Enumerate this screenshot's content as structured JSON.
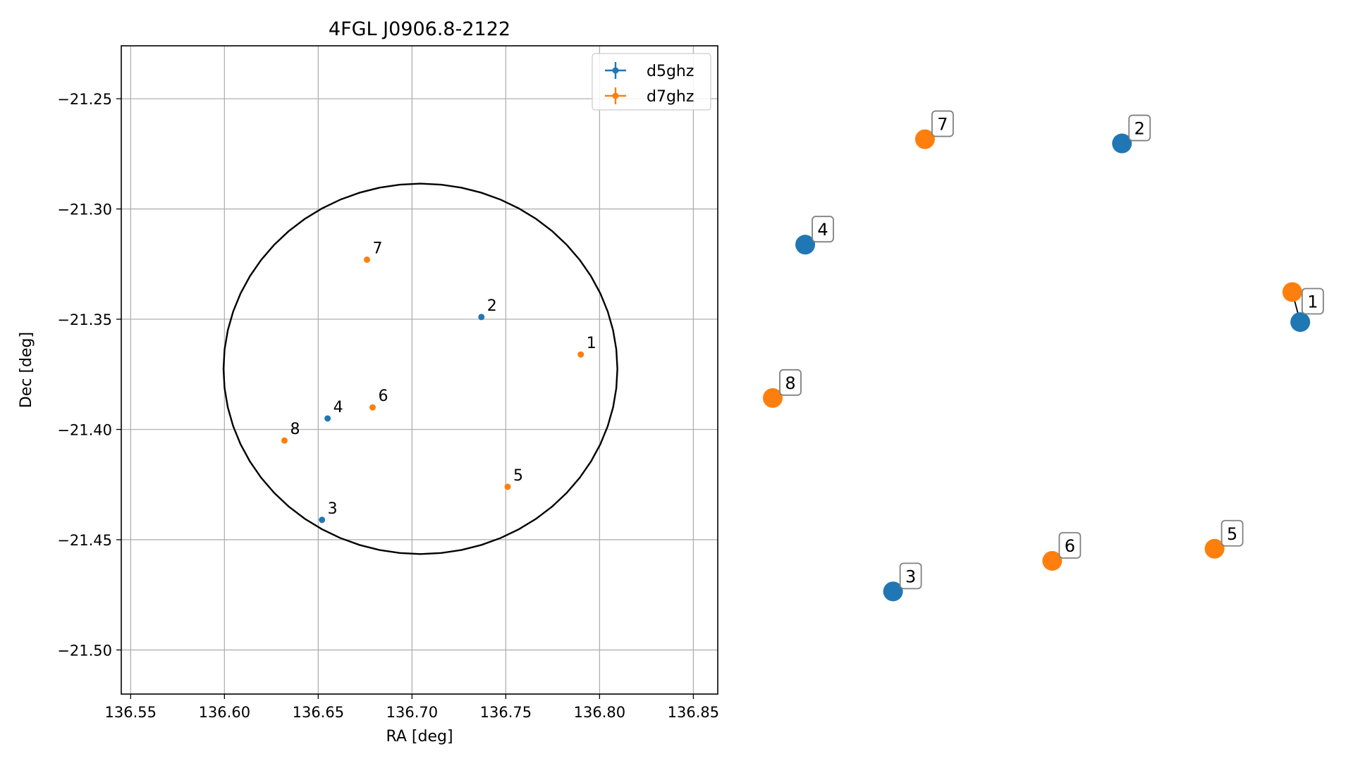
{
  "chart_data": [
    {
      "type": "scatter",
      "title": "4FGL J0906.8-2122",
      "xlabel": "RA [deg]",
      "ylabel": "Dec [deg]",
      "xlim": [
        136.545,
        136.863
      ],
      "ylim": [
        -21.52,
        -21.226
      ],
      "xticks": [
        136.55,
        136.6,
        136.65,
        136.7,
        136.75,
        136.8,
        136.85
      ],
      "xtick_labels": [
        "136.55",
        "136.60",
        "136.65",
        "136.70",
        "136.75",
        "136.80",
        "136.85"
      ],
      "yticks": [
        -21.25,
        -21.3,
        -21.35,
        -21.4,
        -21.45,
        -21.5
      ],
      "ytick_labels": [
        "−21.25",
        "−21.30",
        "−21.35",
        "−21.40",
        "−21.45",
        "−21.50"
      ],
      "grid": true,
      "legend_position": "top-right",
      "series": [
        {
          "name": "d5ghz",
          "color": "#1f77b4",
          "points": [
            {
              "label": "2",
              "x": 136.737,
              "y": -21.349
            },
            {
              "label": "4",
              "x": 136.655,
              "y": -21.395
            },
            {
              "label": "3",
              "x": 136.652,
              "y": -21.441
            }
          ]
        },
        {
          "name": "d7ghz",
          "color": "#ff7f0e",
          "points": [
            {
              "label": "7",
              "x": 136.676,
              "y": -21.323
            },
            {
              "label": "1",
              "x": 136.79,
              "y": -21.366
            },
            {
              "label": "6",
              "x": 136.679,
              "y": -21.39
            },
            {
              "label": "8",
              "x": 136.632,
              "y": -21.405
            },
            {
              "label": "5",
              "x": 136.751,
              "y": -21.426
            }
          ]
        }
      ],
      "ellipse": {
        "center_x": 136.7045,
        "center_y": -21.3725,
        "semi_axis_ra": 0.105,
        "semi_axis_dec": 0.084,
        "color": "#000000"
      }
    },
    {
      "type": "scatter",
      "axes_visible": false,
      "series": [
        {
          "name": "",
          "color": "#1f77b4",
          "points": [
            {
              "label": "2",
              "x": 0.656,
              "y": 0.899
            },
            {
              "label": "4",
              "x": 0.061,
              "y": 0.707
            },
            {
              "label": "1",
              "x": 0.991,
              "y": 0.56
            },
            {
              "label": "3",
              "x": 0.226,
              "y": 0.049
            }
          ]
        },
        {
          "name": "",
          "color": "#ff7f0e",
          "points": [
            {
              "label": "7",
              "x": 0.286,
              "y": 0.907
            },
            {
              "label": "1",
              "x": 0.976,
              "y": 0.617
            },
            {
              "label": "8",
              "x": 0.0,
              "y": 0.416
            },
            {
              "label": "6",
              "x": 0.525,
              "y": 0.107
            },
            {
              "label": "5",
              "x": 0.83,
              "y": 0.13
            }
          ]
        }
      ],
      "connectors": [
        [
          "1",
          "1"
        ]
      ]
    }
  ]
}
